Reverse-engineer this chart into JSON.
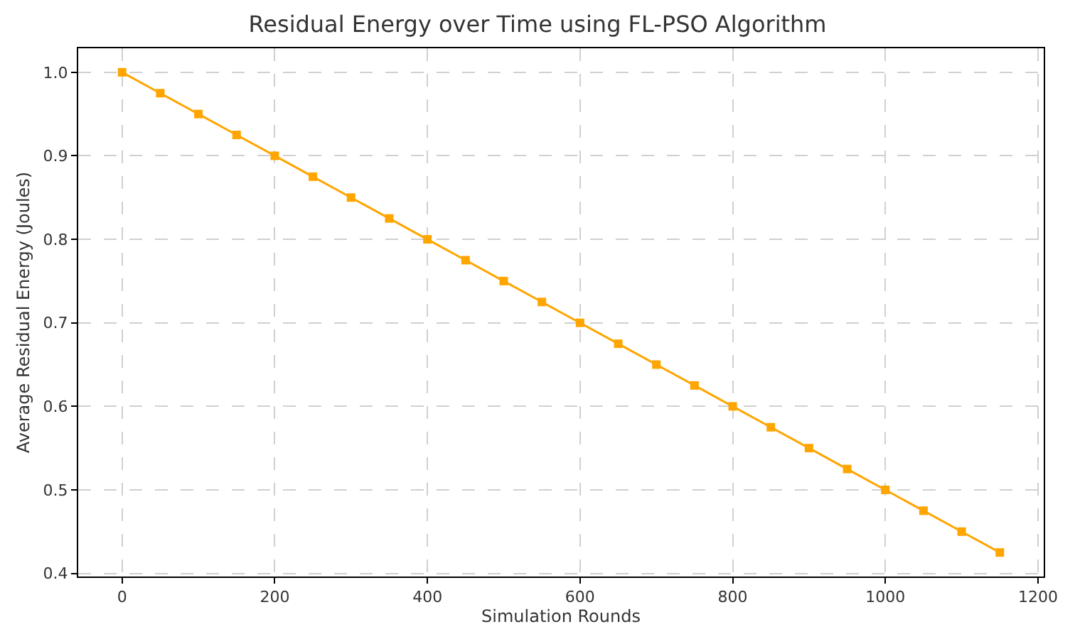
{
  "chart_data": {
    "type": "line",
    "title": "Residual Energy over Time using FL-PSO Algorithm",
    "xlabel": "Simulation Rounds",
    "ylabel": "Average Residual Energy (Joules)",
    "x": [
      0,
      50,
      100,
      150,
      200,
      250,
      300,
      350,
      400,
      450,
      500,
      550,
      600,
      650,
      700,
      750,
      800,
      850,
      900,
      950,
      1000,
      1050,
      1100,
      1150
    ],
    "series": [
      {
        "color": "#ffa500",
        "values": [
          1.0,
          0.975,
          0.95,
          0.925,
          0.9,
          0.875,
          0.85,
          0.825,
          0.8,
          0.775,
          0.75,
          0.725,
          0.7,
          0.675,
          0.65,
          0.625,
          0.6,
          0.575,
          0.55,
          0.525,
          0.5,
          0.475,
          0.45,
          0.425
        ]
      }
    ],
    "xlim": [
      -57.5,
      1207.5
    ],
    "xticks": [
      0,
      200,
      400,
      600,
      800,
      1000,
      1200
    ],
    "ylim": [
      0.39625,
      1.02875
    ],
    "yticks": [
      {
        "value": 0.4,
        "label": "0.4"
      },
      {
        "value": 0.5,
        "label": "0.5"
      },
      {
        "value": 0.6,
        "label": "0.6"
      },
      {
        "value": 0.7,
        "label": "0.7"
      },
      {
        "value": 0.8,
        "label": "0.8"
      },
      {
        "value": 0.9,
        "label": "0.9"
      },
      {
        "value": 1.0,
        "label": "1.0"
      }
    ],
    "grid": true,
    "marker": "square",
    "line_style": "solid"
  }
}
